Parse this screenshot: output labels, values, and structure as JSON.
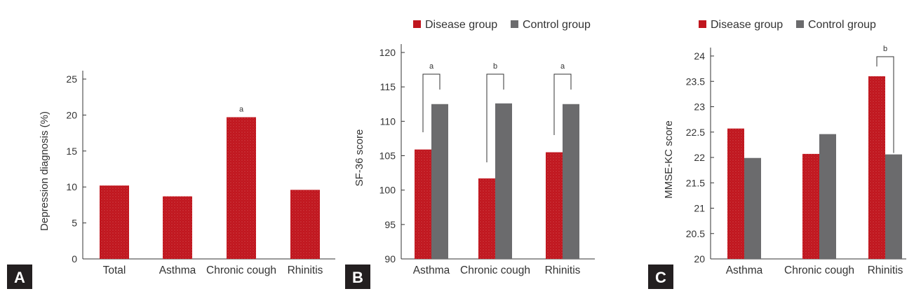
{
  "colors": {
    "disease": "#c0161e",
    "control": "#6b6b6d",
    "panel_label_bg": "#231f20"
  },
  "chart_data": [
    {
      "panel": "A",
      "type": "bar",
      "ylabel": "Depression diagnosis (%)",
      "ylim": [
        0,
        25
      ],
      "yticks": [
        0,
        5,
        10,
        15,
        20,
        25
      ],
      "categories": [
        "Total",
        "Asthma",
        "Chronic cough",
        "Rhinitis"
      ],
      "series": [
        {
          "name": "Disease group",
          "values": [
            10.2,
            8.7,
            19.7,
            9.6
          ]
        }
      ],
      "annotations": [
        {
          "category": "Chronic cough",
          "label": "a"
        }
      ]
    },
    {
      "panel": "B",
      "type": "bar",
      "ylabel": "SF-36 score",
      "ylim": [
        90,
        120
      ],
      "yticks": [
        90,
        95,
        100,
        105,
        110,
        115,
        120
      ],
      "categories": [
        "Asthma",
        "Chronic cough",
        "Rhinitis"
      ],
      "legend": [
        "Disease group",
        "Control group"
      ],
      "series": [
        {
          "name": "Disease group",
          "values": [
            105.9,
            101.7,
            105.5
          ]
        },
        {
          "name": "Control group",
          "values": [
            112.5,
            112.6,
            112.5
          ]
        }
      ],
      "annotations": [
        {
          "category": "Asthma",
          "label": "a"
        },
        {
          "category": "Chronic cough",
          "label": "b"
        },
        {
          "category": "Rhinitis",
          "label": "a"
        }
      ]
    },
    {
      "panel": "C",
      "type": "bar",
      "ylabel": "MMSE-KC score",
      "ylim": [
        20,
        24
      ],
      "yticks": [
        20,
        20.5,
        21,
        21.5,
        22,
        22.5,
        23,
        23.5,
        24
      ],
      "categories": [
        "Asthma",
        "Chronic cough",
        "Rhinitis"
      ],
      "legend": [
        "Disease group",
        "Control group"
      ],
      "series": [
        {
          "name": "Disease group",
          "values": [
            22.57,
            22.07,
            23.6
          ]
        },
        {
          "name": "Control group",
          "values": [
            21.99,
            22.46,
            22.06
          ]
        }
      ],
      "annotations": [
        {
          "category": "Rhinitis",
          "label": "b"
        }
      ]
    }
  ]
}
